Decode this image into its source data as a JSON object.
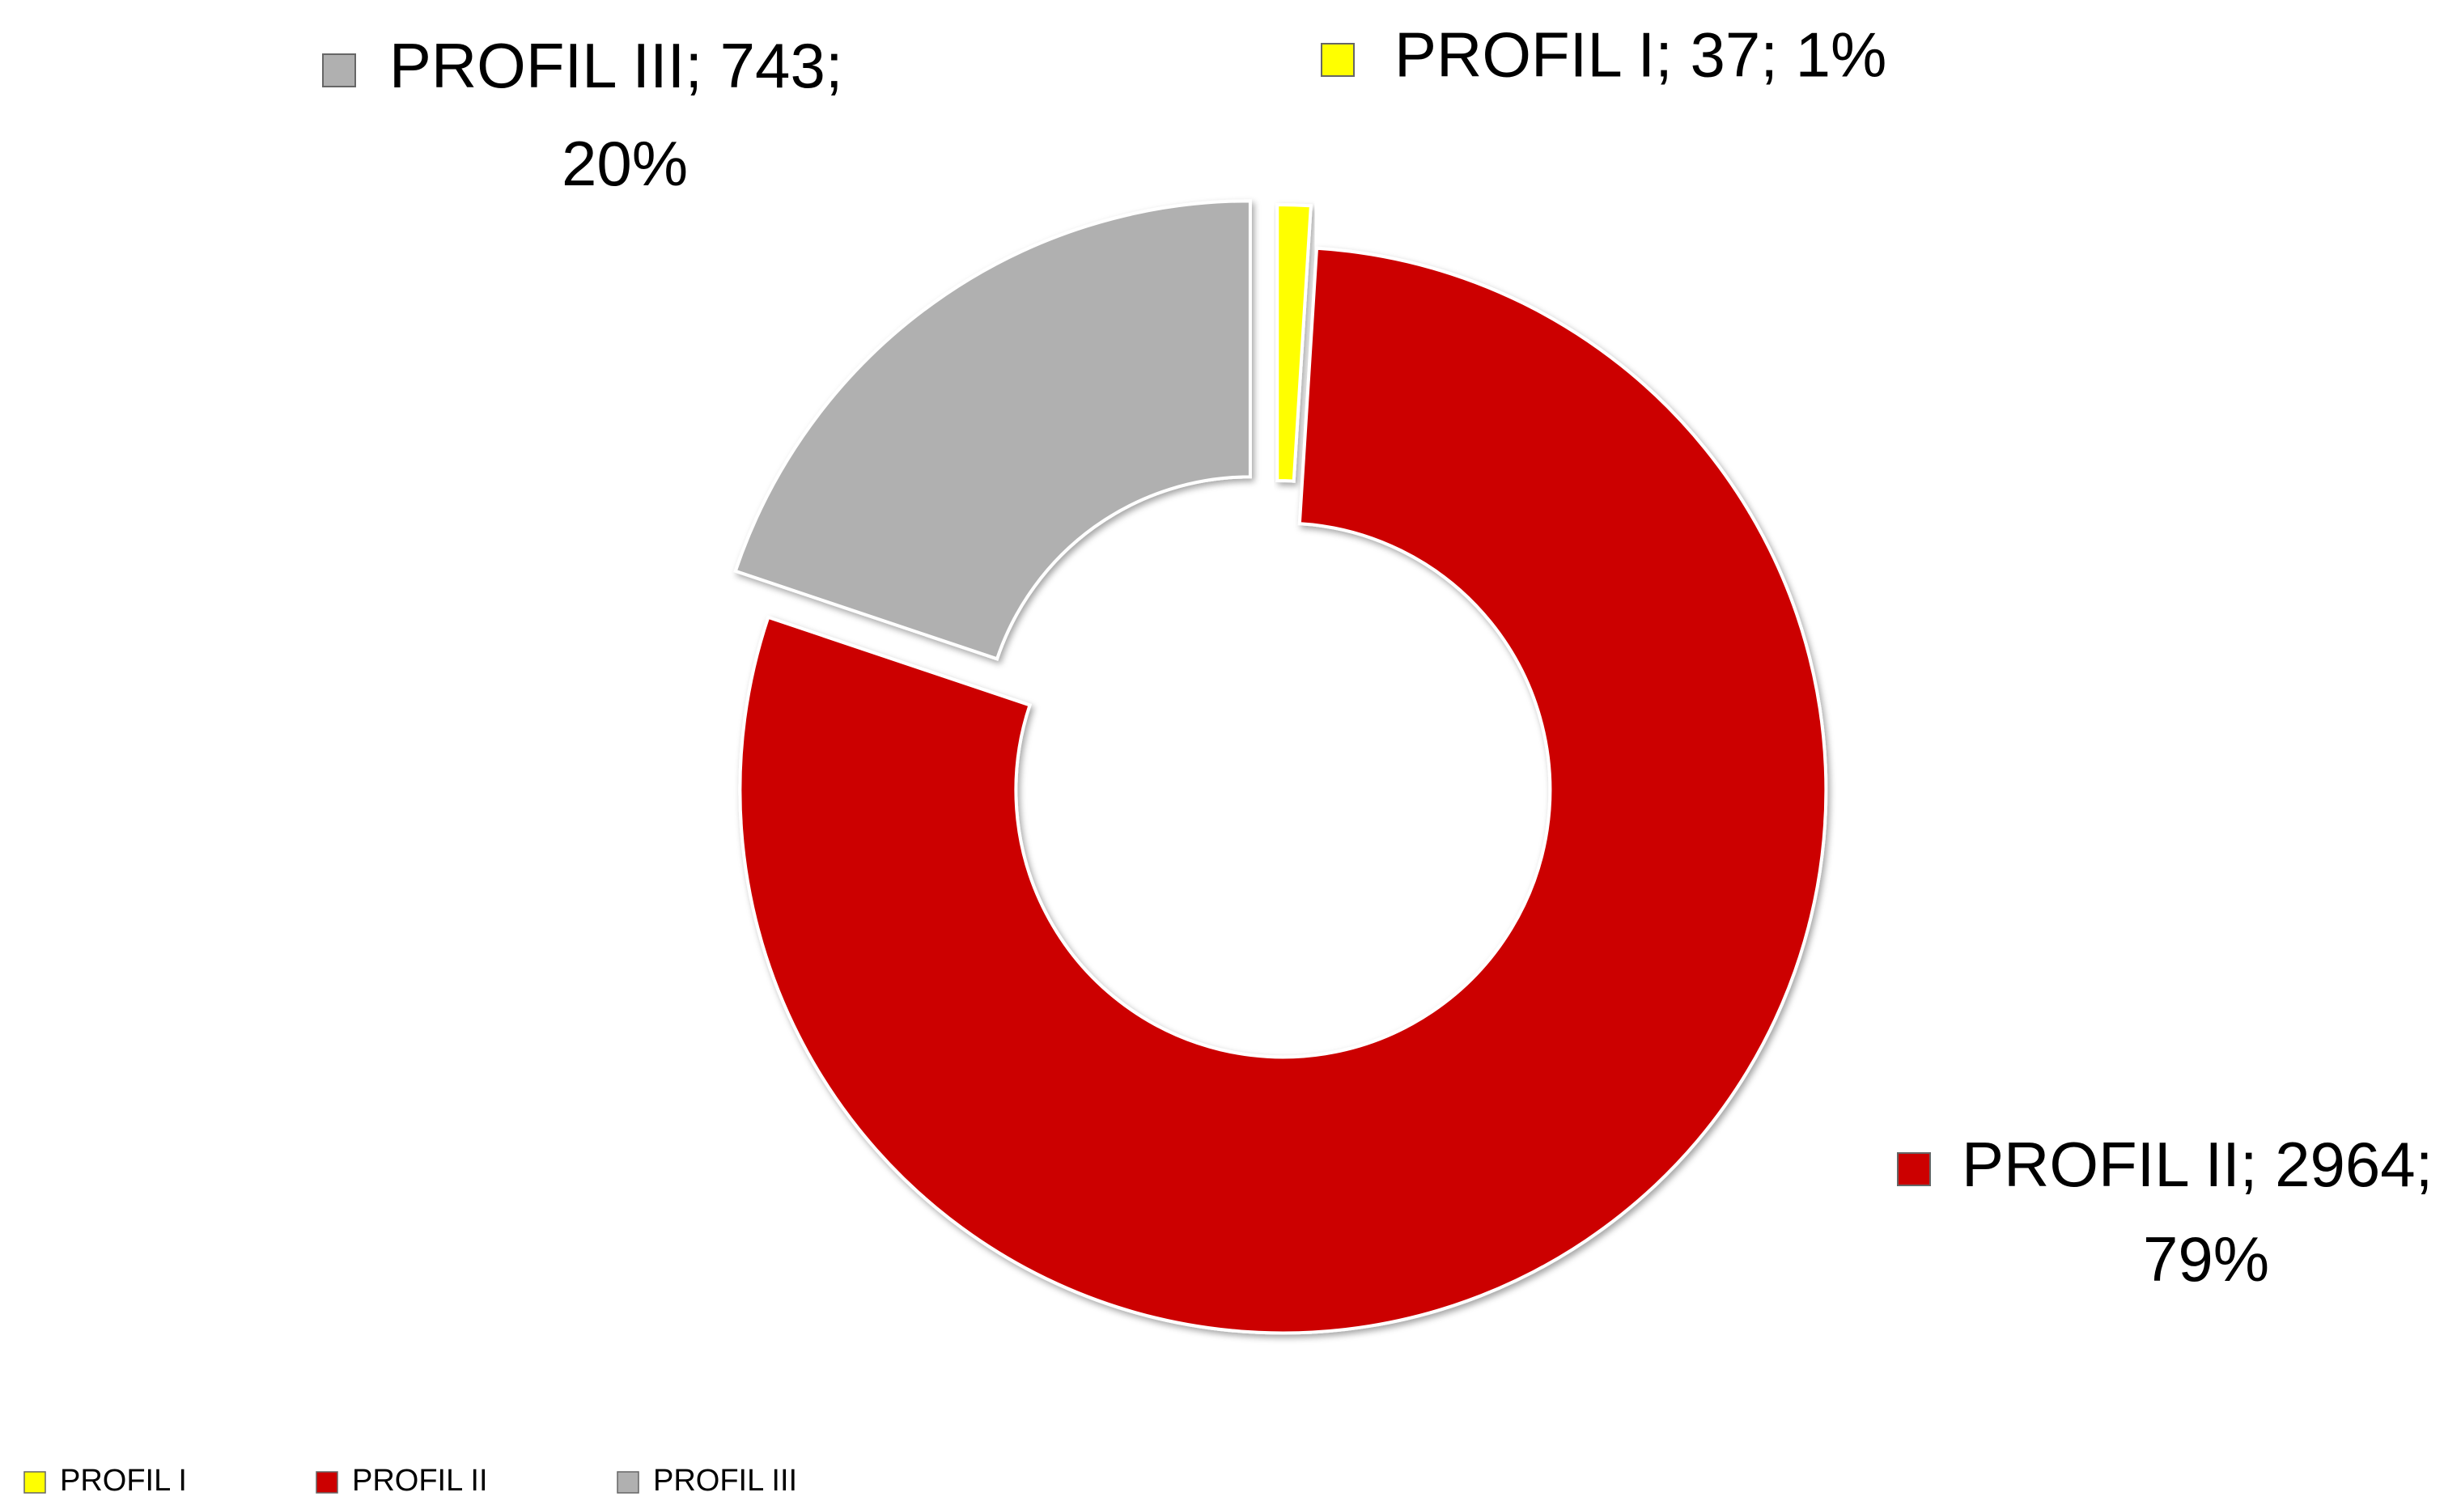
{
  "chart_data": {
    "type": "donut",
    "categories": [
      "PROFIL I",
      "PROFIL II",
      "PROFIL III"
    ],
    "values": [
      37,
      2964,
      743
    ],
    "value_labels": [
      "PROFIL I; 37; 1%",
      "PROFIL II; 2964; 79%",
      "PROFIL III; 743; 20%"
    ],
    "colors": [
      "#ffff00",
      "#cc0000",
      "#b0b0b0"
    ],
    "legend": "bottom"
  }
}
